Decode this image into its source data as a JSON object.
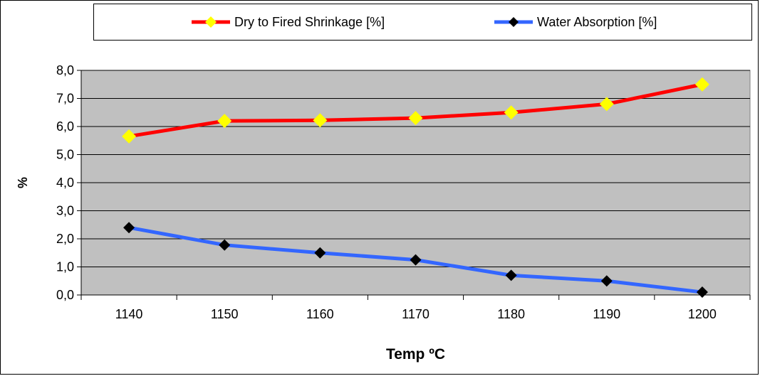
{
  "chart_data": {
    "type": "line",
    "title": "",
    "xlabel": "Temp ºC",
    "ylabel": "%",
    "categories": [
      "1140",
      "1150",
      "1160",
      "1170",
      "1180",
      "1190",
      "1200"
    ],
    "y_tick_labels": [
      "0,0",
      "1,0",
      "2,0",
      "3,0",
      "4,0",
      "5,0",
      "6,0",
      "7,0",
      "8,0"
    ],
    "ylim": [
      0,
      8
    ],
    "grid": true,
    "legend_position": "top",
    "plot_background": "#c0c0c0",
    "series": [
      {
        "name": "Dry to Fired Shrinkage [%]",
        "values": [
          5.65,
          6.2,
          6.22,
          6.3,
          6.5,
          6.8,
          7.5
        ],
        "line_color": "#ff0000",
        "marker_color": "#ffff00",
        "marker": "diamond"
      },
      {
        "name": "Water Absorption [%]",
        "values": [
          2.4,
          1.78,
          1.5,
          1.25,
          0.7,
          0.5,
          0.1
        ],
        "line_color": "#3366ff",
        "marker_color": "#000000",
        "marker": "diamond"
      }
    ]
  }
}
